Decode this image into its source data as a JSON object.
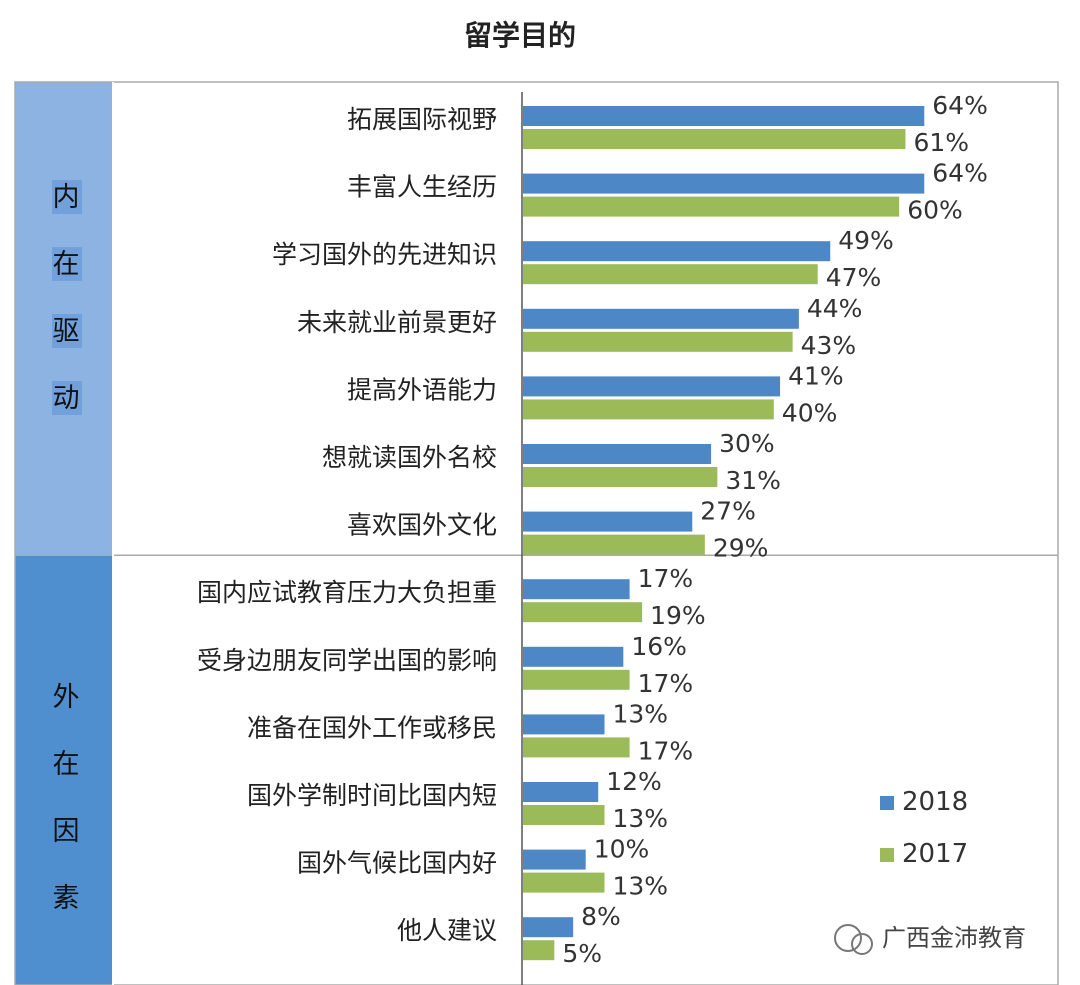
{
  "title": "留学目的",
  "chart_data": {
    "type": "bar",
    "orientation": "horizontal",
    "title": "留学目的",
    "categories": [
      "拓展国际视野",
      "丰富人生经历",
      "学习国外的先进知识",
      "未来就业前景更好",
      "提高外语能力",
      "想就读国外名校",
      "喜欢国外文化",
      "国内应试教育压力大负担重",
      "受身边朋友同学出国的影响",
      "准备在国外工作或移民",
      "国外学制时间比国内短",
      "国外气候比国内好",
      "他人建议"
    ],
    "series": [
      {
        "name": "2018",
        "color": "#4e87c6",
        "values": [
          64,
          64,
          49,
          44,
          41,
          30,
          27,
          17,
          16,
          13,
          12,
          10,
          8
        ]
      },
      {
        "name": "2017",
        "color": "#9bbb59",
        "values": [
          61,
          60,
          47,
          43,
          40,
          31,
          29,
          19,
          17,
          17,
          13,
          13,
          5
        ]
      }
    ],
    "value_suffix": "%",
    "groups": [
      {
        "label": "内在驱动",
        "chars": [
          "内",
          "在",
          "驱",
          "动"
        ],
        "range": [
          0,
          6
        ]
      },
      {
        "label": "外在因素",
        "chars": [
          "外",
          "在",
          "因",
          "素"
        ],
        "range": [
          7,
          12
        ]
      }
    ],
    "legend_position": "right"
  },
  "watermark": "广西金沛教育",
  "colors": {
    "group_band_top": "#8db3e2",
    "group_band_bottom": "#4f8fcf",
    "border": "#aaaaaa"
  }
}
